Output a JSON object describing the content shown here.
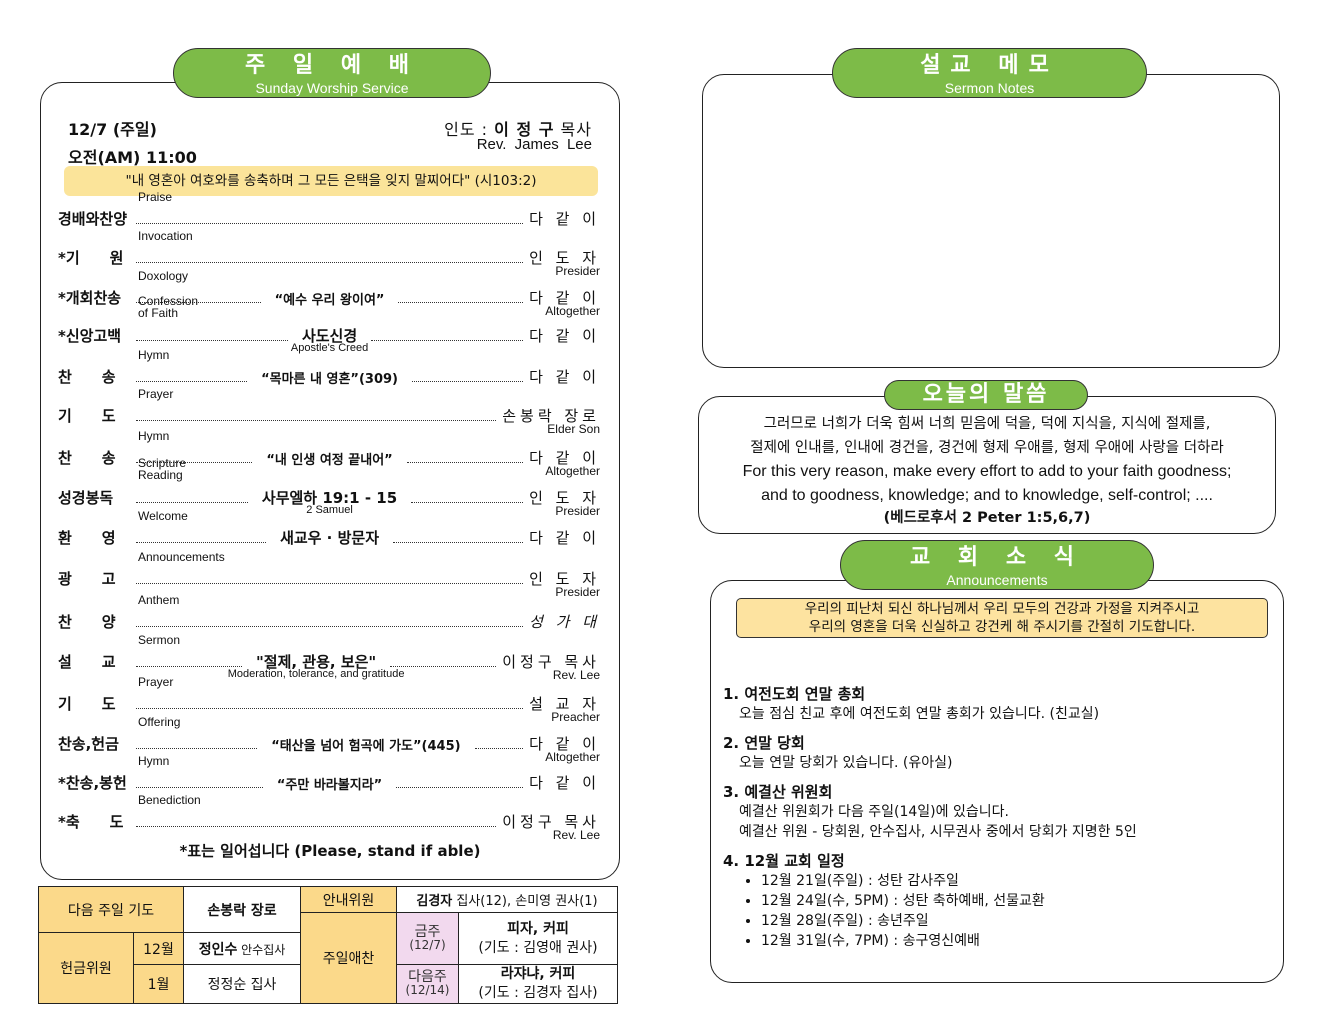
{
  "worship": {
    "title_ko": "주 일 예 배",
    "title_en": "Sunday Worship Service",
    "date": "12/7 (주일)",
    "time": "오전(AM) 11:00",
    "leader_label": "인도 : ",
    "leader_name": "이 정 구",
    "leader_title": " 목사",
    "leader_en": "Rev. James Lee",
    "verse": "\"내 영혼아 여호와를 송축하며 그 모든 은택을 잊지 말찌어다\" (시103:2)",
    "items": [
      {
        "label": "경배와찬양",
        "en": "Praise",
        "title": "",
        "title_en": "",
        "person": "다 같 이",
        "person_en": ""
      },
      {
        "label": "*기　　원",
        "en": "Invocation",
        "title": "",
        "title_en": "",
        "person": "인 도 자",
        "person_en": "Presider"
      },
      {
        "label": "*개회찬송",
        "en": "Doxology",
        "title": "“예수 우리 왕이여”",
        "title_en": "",
        "person": "다 같 이",
        "person_en": "Altogether"
      },
      {
        "label": "*신앙고백",
        "en": "Confession\nof Faith",
        "title": "사도신경",
        "title_en": "Apostle's Creed",
        "person": "다 같 이",
        "person_en": ""
      },
      {
        "label": "찬　　송",
        "en": "Hymn",
        "title": "“목마른 내 영혼”(309)",
        "title_en": "",
        "person": "다 같 이",
        "person_en": ""
      },
      {
        "label": "기　　도",
        "en": "Prayer",
        "title": "",
        "title_en": "",
        "person": "손봉락 장로",
        "person_en": "Elder Son"
      },
      {
        "label": "찬　　송",
        "en": "Hymn",
        "title": "“내 인생 여정 끝내어”",
        "title_en": "",
        "person": "다 같 이",
        "person_en": "Altogether"
      },
      {
        "label": "성경봉독",
        "en": "Scripture\nReading",
        "title": "사무엘하 19:1 - 15",
        "title_en": "2 Samuel",
        "person": "인 도 자",
        "person_en": "Presider"
      },
      {
        "label": "환　　영",
        "en": "Welcome",
        "title": "새교우 · 방문자",
        "title_en": "",
        "person": "다 같 이",
        "person_en": ""
      },
      {
        "label": "광　　고",
        "en": "Announcements",
        "title": "",
        "title_en": "",
        "person": "인 도 자",
        "person_en": "Presider"
      },
      {
        "label": "찬　　양",
        "en": "Anthem",
        "title": "",
        "title_en": "",
        "person": "성 가 대",
        "person_en": ""
      },
      {
        "label": "설　　교",
        "en": "Sermon",
        "title": "\"절제, 관용, 보은\"",
        "title_en": "Moderation, tolerance, and gratitude",
        "person": "이정구 목사",
        "person_en": "Rev. Lee"
      },
      {
        "label": "기　　도",
        "en": "Prayer",
        "title": "",
        "title_en": "",
        "person": "설 교 자",
        "person_en": "Preacher"
      },
      {
        "label": "찬송,헌금",
        "en": "Offering",
        "title": "“태산을 넘어 험곡에 가도”(445)",
        "title_en": "",
        "person": "다 같 이",
        "person_en": "Altogether"
      },
      {
        "label": "*찬송,봉헌",
        "en": "Hymn",
        "title": "“주만 바라볼지라”",
        "title_en": "",
        "person": "다 같 이",
        "person_en": ""
      },
      {
        "label": "*축　　도",
        "en": "Benediction",
        "title": "",
        "title_en": "",
        "person": "이정구 목사",
        "person_en": "Rev. Lee"
      }
    ],
    "stand_note": "*표는 일어섭니다 (Please, stand if able)"
  },
  "roster": {
    "next_prayer_label": "다음 주일 기도",
    "next_prayer_name": "손봉락 장로",
    "offering_label": "헌금위원",
    "dec": "12월",
    "dec_name": "정인수",
    "dec_title": " 안수집사",
    "jan": "1월",
    "jan_name": "정정순 집사",
    "usher_label": "안내위원",
    "usher_name1": "김경자",
    "usher_detail1": " 집사(12), ",
    "usher_name2": "손미영",
    "usher_detail2": " 권사(1)",
    "lunch_label": "주일애찬",
    "this_week": "금주",
    "this_date": "(12/7)",
    "this_menu": "피자, 커피",
    "this_prayer": "(기도 : 김영애 권사)",
    "next_week": "다음주",
    "next_date": "(12/14)",
    "next_menu": "라쟈냐, 커피",
    "next_prayer": "(기도 : 김경자 집사)"
  },
  "notes": {
    "title_ko": "설교 메모",
    "title_en": "Sermon Notes"
  },
  "word": {
    "title_ko": "오늘의 말씀",
    "lines": [
      "그러므로 너희가 더욱 힘써 너희 믿음에 덕을, 덕에 지식을, 지식에 절제를,",
      "절제에 인내를, 인내에 경건을, 경건에 형제 우애를, 형제 우애에 사랑을 더하라",
      "For this very reason, make every effort to add to your faith goodness;",
      "and to goodness, knowledge; and to knowledge, self-control; ....",
      "(베드로후서 2 Peter 1:5,6,7)"
    ]
  },
  "news": {
    "title_ko": "교 회 소 식",
    "title_en": "Announcements",
    "prayer": [
      "우리의 피난처 되신 하나님께서 우리 모두의 건강과 가정을 지켜주시고",
      "우리의 영혼을 더욱 신실하고 강건케 해 주시기를 간절히 기도합니다."
    ],
    "items": [
      {
        "title": "1. 여전도회 연말 총회",
        "lines": [
          "오늘 점심 친교 후에 여전도회 연말 총회가 있습니다. (친교실)"
        ]
      },
      {
        "title": "2. 연말 당회",
        "lines": [
          "오늘 연말 당회가 있습니다. (유아실)"
        ]
      },
      {
        "title": "3. 예결산 위원회",
        "lines": [
          "예결산 위원회가 다음 주일(14일)에 있습니다.",
          "예결산 위원 - 당회원, 안수집사, 시무권사 중에서 당회가 지명한 5인"
        ]
      }
    ],
    "schedule_title": "4. 12월 교회 일정",
    "schedule": [
      "12월 21일(주일) : 성탄 감사주일",
      "12월 24일(수, 5PM) : 성탄 축하예배, 선물교환",
      "12월 28일(주일) : 송년주일",
      "12월 31일(수, 7PM) : 송구영신예배"
    ]
  },
  "colors": {
    "green": "#7dbb48",
    "yellow": "#fbd98a",
    "pink": "#f2d9ee"
  }
}
